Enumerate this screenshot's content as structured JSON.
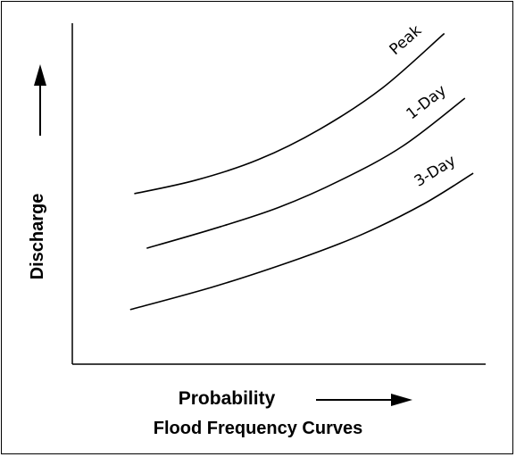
{
  "caption": "Flood Frequency Curves",
  "chart_data": {
    "type": "line",
    "title": "Flood Frequency Curves",
    "xlabel": "Probability",
    "ylabel": "Discharge",
    "xlim": [
      0,
      1
    ],
    "ylim": [
      0,
      1
    ],
    "grid": false,
    "axis_ticks": false,
    "series": [
      {
        "name": "Peak",
        "x": [
          0.15,
          0.3,
          0.45,
          0.6,
          0.75,
          0.9
        ],
        "y": [
          0.5,
          0.54,
          0.6,
          0.69,
          0.81,
          0.97
        ]
      },
      {
        "name": "1-Day",
        "x": [
          0.18,
          0.35,
          0.5,
          0.65,
          0.8,
          0.95
        ],
        "y": [
          0.34,
          0.4,
          0.46,
          0.54,
          0.64,
          0.78
        ]
      },
      {
        "name": "3-Day",
        "x": [
          0.14,
          0.35,
          0.55,
          0.7,
          0.85,
          0.97
        ],
        "y": [
          0.16,
          0.23,
          0.31,
          0.38,
          0.47,
          0.56
        ]
      }
    ],
    "colors": {
      "line": "#000000",
      "background": "#ffffff"
    }
  }
}
